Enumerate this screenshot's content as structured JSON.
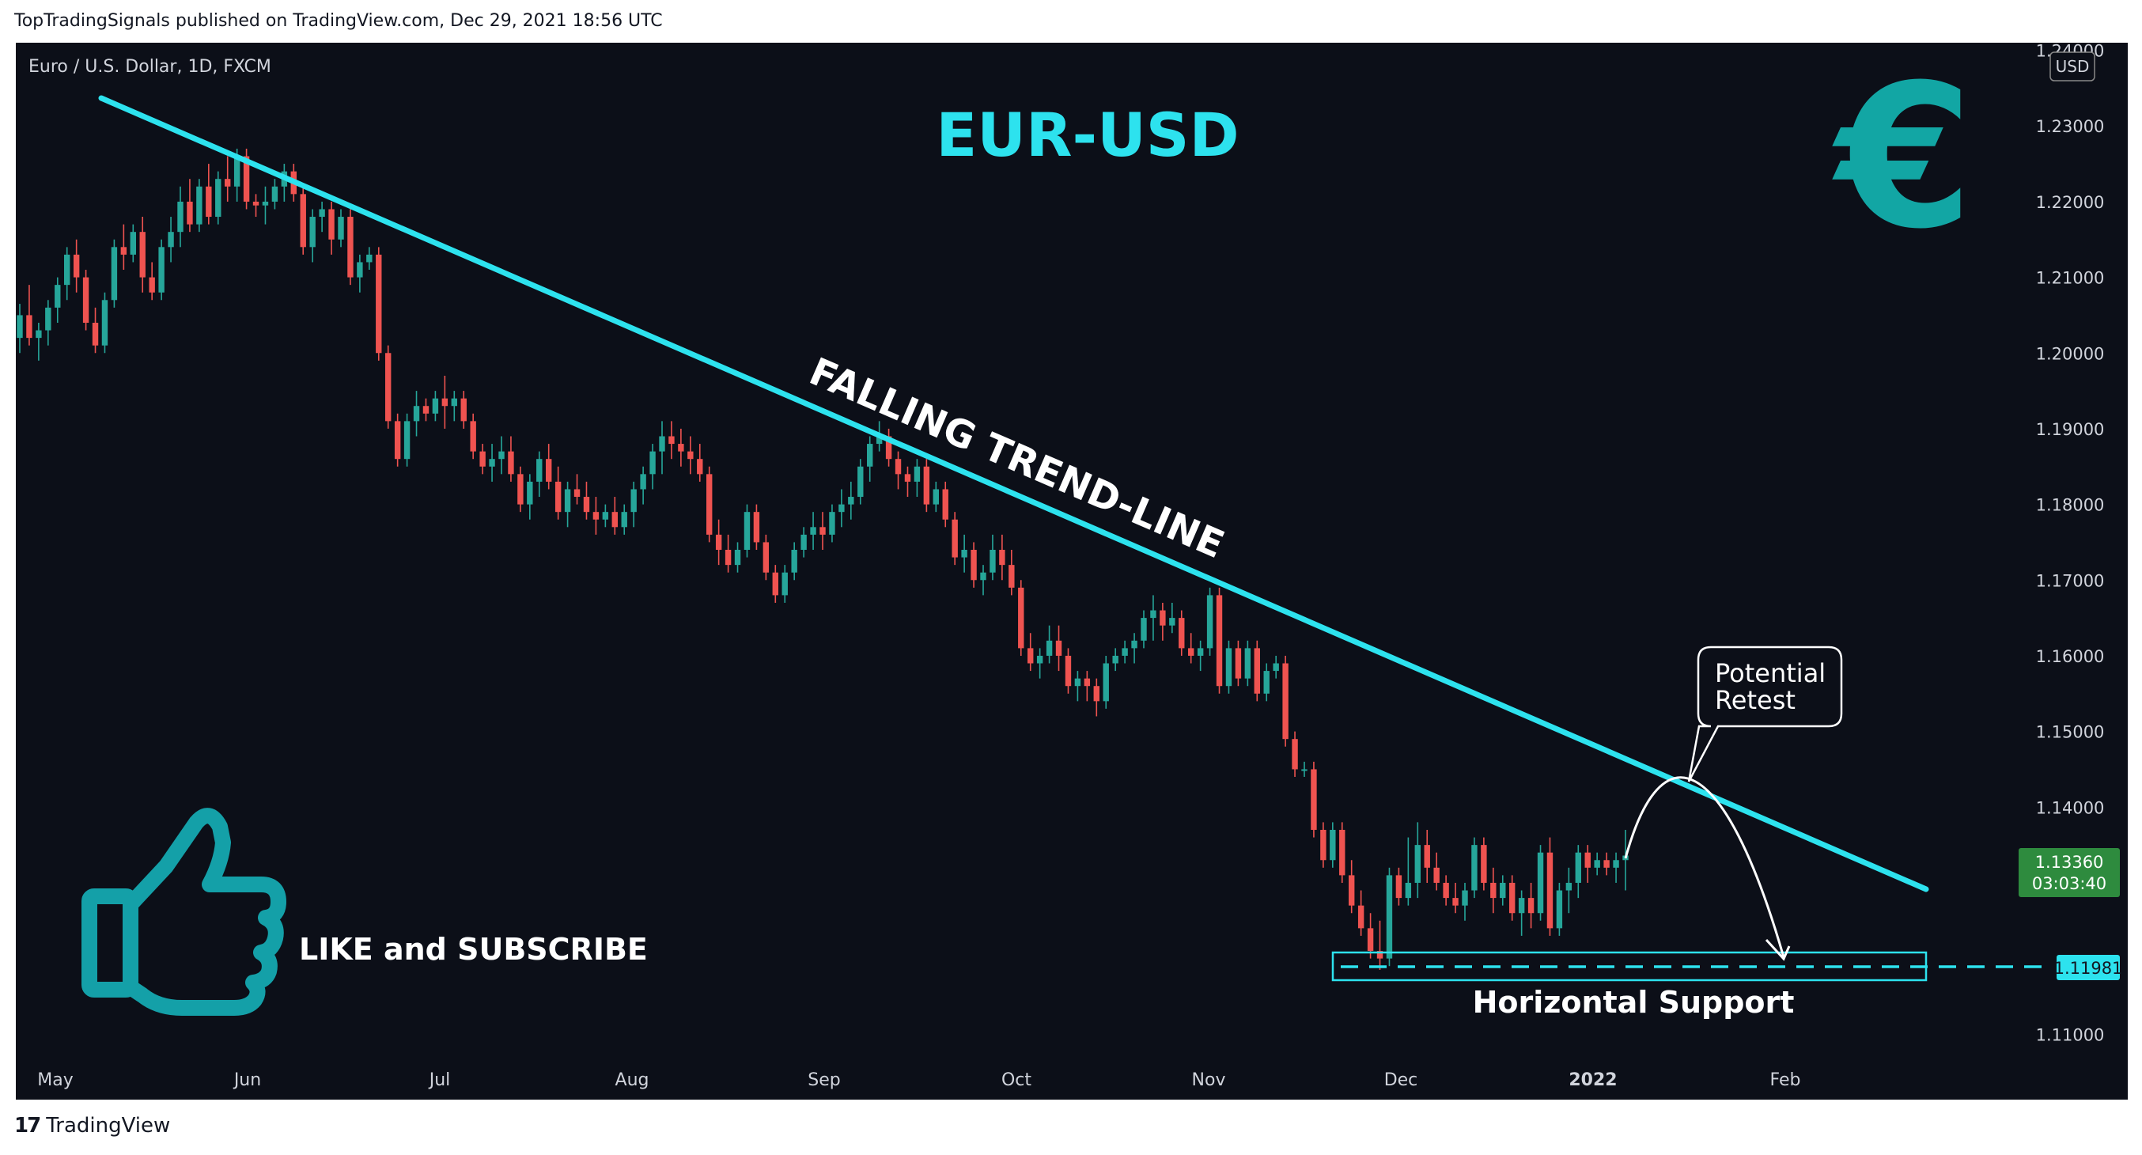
{
  "header": {
    "published": "TopTradingSignals published on TradingView.com, Dec 29, 2021 18:56 UTC"
  },
  "footer": {
    "brand": "TradingView",
    "logo_text": "17"
  },
  "chart_data": {
    "type": "candlestick",
    "symbol_label": "Euro / U.S. Dollar, 1D, FXCM",
    "title": "EUR-USD",
    "currency": "USD",
    "ylim": [
      1.107,
      1.241
    ],
    "y_ticks": [
      "1.24000",
      "1.23000",
      "1.22000",
      "1.21000",
      "1.20000",
      "1.19000",
      "1.18000",
      "1.17000",
      "1.16000",
      "1.15000",
      "1.14000",
      "1.11000"
    ],
    "x_ticks": [
      "May",
      "Jun",
      "Jul",
      "Aug",
      "Sep",
      "Oct",
      "Nov",
      "Dec",
      "2022",
      "Feb"
    ],
    "last_price": {
      "value": "1.13360",
      "countdown": "03:03:40"
    },
    "support_price": "1.11981",
    "annotations": {
      "trendline_label": "FALLING TREND-LINE",
      "support_label": "Horizontal Support",
      "callout": [
        "Potential",
        "Retest"
      ],
      "promo": "LIKE and SUBSCRIBE",
      "euro_symbol": "€"
    },
    "colors": {
      "up": "#26a69a",
      "down": "#ef5350",
      "trendline": "#2de2ee",
      "background": "#0c0f18",
      "last_price": "#2e8b3e",
      "accent": "#00bcd4"
    },
    "ohlc": [
      [
        1.202,
        1.2065,
        1.2,
        1.205
      ],
      [
        1.205,
        1.209,
        1.201,
        1.202
      ],
      [
        1.202,
        1.204,
        1.199,
        1.203
      ],
      [
        1.203,
        1.207,
        1.201,
        1.206
      ],
      [
        1.206,
        1.21,
        1.204,
        1.209
      ],
      [
        1.209,
        1.214,
        1.207,
        1.213
      ],
      [
        1.213,
        1.215,
        1.208,
        1.21
      ],
      [
        1.21,
        1.211,
        1.203,
        1.204
      ],
      [
        1.204,
        1.206,
        1.2,
        1.201
      ],
      [
        1.201,
        1.208,
        1.2,
        1.207
      ],
      [
        1.207,
        1.215,
        1.206,
        1.214
      ],
      [
        1.214,
        1.217,
        1.211,
        1.213
      ],
      [
        1.213,
        1.217,
        1.212,
        1.216
      ],
      [
        1.216,
        1.218,
        1.208,
        1.21
      ],
      [
        1.21,
        1.212,
        1.207,
        1.208
      ],
      [
        1.208,
        1.215,
        1.207,
        1.214
      ],
      [
        1.214,
        1.218,
        1.212,
        1.216
      ],
      [
        1.216,
        1.222,
        1.214,
        1.22
      ],
      [
        1.22,
        1.223,
        1.216,
        1.217
      ],
      [
        1.217,
        1.223,
        1.216,
        1.222
      ],
      [
        1.222,
        1.225,
        1.217,
        1.218
      ],
      [
        1.218,
        1.224,
        1.217,
        1.223
      ],
      [
        1.223,
        1.226,
        1.22,
        1.222
      ],
      [
        1.222,
        1.227,
        1.22,
        1.226
      ],
      [
        1.226,
        1.227,
        1.219,
        1.22
      ],
      [
        1.22,
        1.221,
        1.218,
        1.2195
      ],
      [
        1.2195,
        1.222,
        1.217,
        1.22
      ],
      [
        1.22,
        1.223,
        1.219,
        1.222
      ],
      [
        1.222,
        1.225,
        1.22,
        1.224
      ],
      [
        1.224,
        1.225,
        1.22,
        1.221
      ],
      [
        1.221,
        1.222,
        1.213,
        1.214
      ],
      [
        1.214,
        1.219,
        1.212,
        1.218
      ],
      [
        1.218,
        1.22,
        1.216,
        1.219
      ],
      [
        1.219,
        1.22,
        1.213,
        1.215
      ],
      [
        1.215,
        1.219,
        1.214,
        1.218
      ],
      [
        1.218,
        1.219,
        1.209,
        1.21
      ],
      [
        1.21,
        1.213,
        1.208,
        1.212
      ],
      [
        1.212,
        1.214,
        1.211,
        1.213
      ],
      [
        1.213,
        1.214,
        1.199,
        1.2
      ],
      [
        1.2,
        1.201,
        1.19,
        1.191
      ],
      [
        1.191,
        1.192,
        1.185,
        1.186
      ],
      [
        1.186,
        1.192,
        1.185,
        1.191
      ],
      [
        1.191,
        1.195,
        1.189,
        1.193
      ],
      [
        1.193,
        1.194,
        1.191,
        1.192
      ],
      [
        1.192,
        1.195,
        1.191,
        1.194
      ],
      [
        1.194,
        1.197,
        1.19,
        1.193
      ],
      [
        1.193,
        1.195,
        1.191,
        1.194
      ],
      [
        1.194,
        1.195,
        1.19,
        1.191
      ],
      [
        1.191,
        1.192,
        1.186,
        1.187
      ],
      [
        1.187,
        1.188,
        1.184,
        1.185
      ],
      [
        1.185,
        1.188,
        1.183,
        1.186
      ],
      [
        1.186,
        1.189,
        1.184,
        1.187
      ],
      [
        1.187,
        1.189,
        1.183,
        1.184
      ],
      [
        1.184,
        1.185,
        1.179,
        1.18
      ],
      [
        1.18,
        1.184,
        1.178,
        1.183
      ],
      [
        1.183,
        1.187,
        1.181,
        1.186
      ],
      [
        1.186,
        1.188,
        1.182,
        1.183
      ],
      [
        1.183,
        1.185,
        1.178,
        1.179
      ],
      [
        1.179,
        1.183,
        1.177,
        1.182
      ],
      [
        1.182,
        1.184,
        1.18,
        1.181
      ],
      [
        1.181,
        1.183,
        1.178,
        1.179
      ],
      [
        1.179,
        1.181,
        1.176,
        1.178
      ],
      [
        1.178,
        1.18,
        1.177,
        1.179
      ],
      [
        1.179,
        1.181,
        1.176,
        1.177
      ],
      [
        1.177,
        1.18,
        1.176,
        1.179
      ],
      [
        1.179,
        1.183,
        1.177,
        1.182
      ],
      [
        1.182,
        1.185,
        1.18,
        1.184
      ],
      [
        1.184,
        1.188,
        1.182,
        1.187
      ],
      [
        1.187,
        1.191,
        1.184,
        1.189
      ],
      [
        1.189,
        1.191,
        1.186,
        1.188
      ],
      [
        1.188,
        1.19,
        1.185,
        1.187
      ],
      [
        1.187,
        1.189,
        1.184,
        1.186
      ],
      [
        1.186,
        1.188,
        1.183,
        1.184
      ],
      [
        1.184,
        1.185,
        1.175,
        1.176
      ],
      [
        1.176,
        1.178,
        1.172,
        1.174
      ],
      [
        1.174,
        1.176,
        1.171,
        1.172
      ],
      [
        1.172,
        1.175,
        1.171,
        1.174
      ],
      [
        1.174,
        1.18,
        1.173,
        1.179
      ],
      [
        1.179,
        1.18,
        1.174,
        1.175
      ],
      [
        1.175,
        1.176,
        1.17,
        1.171
      ],
      [
        1.171,
        1.172,
        1.167,
        1.168
      ],
      [
        1.168,
        1.172,
        1.167,
        1.171
      ],
      [
        1.171,
        1.175,
        1.17,
        1.174
      ],
      [
        1.174,
        1.177,
        1.173,
        1.176
      ],
      [
        1.176,
        1.179,
        1.174,
        1.177
      ],
      [
        1.177,
        1.179,
        1.174,
        1.176
      ],
      [
        1.176,
        1.18,
        1.175,
        1.179
      ],
      [
        1.179,
        1.182,
        1.177,
        1.18
      ],
      [
        1.18,
        1.183,
        1.178,
        1.181
      ],
      [
        1.181,
        1.186,
        1.18,
        1.185
      ],
      [
        1.185,
        1.189,
        1.183,
        1.188
      ],
      [
        1.188,
        1.191,
        1.187,
        1.189
      ],
      [
        1.189,
        1.19,
        1.185,
        1.186
      ],
      [
        1.186,
        1.187,
        1.182,
        1.184
      ],
      [
        1.184,
        1.185,
        1.181,
        1.183
      ],
      [
        1.183,
        1.186,
        1.181,
        1.185
      ],
      [
        1.185,
        1.186,
        1.179,
        1.18
      ],
      [
        1.18,
        1.183,
        1.179,
        1.182
      ],
      [
        1.182,
        1.183,
        1.177,
        1.178
      ],
      [
        1.178,
        1.179,
        1.172,
        1.173
      ],
      [
        1.173,
        1.176,
        1.171,
        1.174
      ],
      [
        1.174,
        1.175,
        1.169,
        1.17
      ],
      [
        1.17,
        1.172,
        1.168,
        1.171
      ],
      [
        1.171,
        1.176,
        1.17,
        1.174
      ],
      [
        1.174,
        1.176,
        1.17,
        1.172
      ],
      [
        1.172,
        1.174,
        1.168,
        1.169
      ],
      [
        1.169,
        1.17,
        1.16,
        1.161
      ],
      [
        1.161,
        1.163,
        1.158,
        1.159
      ],
      [
        1.159,
        1.161,
        1.157,
        1.16
      ],
      [
        1.16,
        1.164,
        1.159,
        1.162
      ],
      [
        1.162,
        1.164,
        1.158,
        1.16
      ],
      [
        1.16,
        1.161,
        1.155,
        1.156
      ],
      [
        1.156,
        1.158,
        1.154,
        1.157
      ],
      [
        1.157,
        1.158,
        1.154,
        1.156
      ],
      [
        1.156,
        1.157,
        1.152,
        1.154
      ],
      [
        1.154,
        1.16,
        1.153,
        1.159
      ],
      [
        1.159,
        1.161,
        1.158,
        1.16
      ],
      [
        1.16,
        1.162,
        1.159,
        1.161
      ],
      [
        1.161,
        1.163,
        1.159,
        1.162
      ],
      [
        1.162,
        1.166,
        1.161,
        1.165
      ],
      [
        1.165,
        1.168,
        1.162,
        1.166
      ],
      [
        1.166,
        1.167,
        1.162,
        1.164
      ],
      [
        1.164,
        1.167,
        1.163,
        1.165
      ],
      [
        1.165,
        1.166,
        1.16,
        1.161
      ],
      [
        1.161,
        1.163,
        1.159,
        1.16
      ],
      [
        1.16,
        1.162,
        1.158,
        1.161
      ],
      [
        1.161,
        1.169,
        1.16,
        1.168
      ],
      [
        1.168,
        1.169,
        1.155,
        1.156
      ],
      [
        1.156,
        1.162,
        1.155,
        1.161
      ],
      [
        1.161,
        1.162,
        1.156,
        1.157
      ],
      [
        1.157,
        1.162,
        1.156,
        1.161
      ],
      [
        1.161,
        1.162,
        1.154,
        1.155
      ],
      [
        1.155,
        1.159,
        1.154,
        1.158
      ],
      [
        1.158,
        1.16,
        1.157,
        1.159
      ],
      [
        1.159,
        1.16,
        1.148,
        1.149
      ],
      [
        1.149,
        1.15,
        1.144,
        1.145
      ],
      [
        1.145,
        1.146,
        1.144,
        1.145
      ],
      [
        1.145,
        1.146,
        1.136,
        1.137
      ],
      [
        1.137,
        1.138,
        1.132,
        1.133
      ],
      [
        1.133,
        1.138,
        1.132,
        1.137
      ],
      [
        1.137,
        1.138,
        1.13,
        1.131
      ],
      [
        1.131,
        1.133,
        1.126,
        1.127
      ],
      [
        1.127,
        1.129,
        1.123,
        1.124
      ],
      [
        1.124,
        1.126,
        1.12,
        1.121
      ],
      [
        1.121,
        1.125,
        1.1185,
        1.12
      ],
      [
        1.12,
        1.132,
        1.119,
        1.131
      ],
      [
        1.131,
        1.132,
        1.127,
        1.128
      ],
      [
        1.128,
        1.136,
        1.127,
        1.13
      ],
      [
        1.13,
        1.138,
        1.128,
        1.135
      ],
      [
        1.135,
        1.137,
        1.13,
        1.132
      ],
      [
        1.132,
        1.134,
        1.129,
        1.13
      ],
      [
        1.13,
        1.131,
        1.127,
        1.128
      ],
      [
        1.128,
        1.13,
        1.126,
        1.127
      ],
      [
        1.127,
        1.13,
        1.125,
        1.129
      ],
      [
        1.129,
        1.136,
        1.128,
        1.135
      ],
      [
        1.135,
        1.136,
        1.129,
        1.13
      ],
      [
        1.13,
        1.132,
        1.126,
        1.128
      ],
      [
        1.128,
        1.131,
        1.127,
        1.13
      ],
      [
        1.13,
        1.131,
        1.125,
        1.126
      ],
      [
        1.126,
        1.129,
        1.123,
        1.128
      ],
      [
        1.128,
        1.13,
        1.124,
        1.126
      ],
      [
        1.126,
        1.135,
        1.125,
        1.134
      ],
      [
        1.134,
        1.136,
        1.123,
        1.124
      ],
      [
        1.124,
        1.13,
        1.123,
        1.129
      ],
      [
        1.129,
        1.132,
        1.126,
        1.13
      ],
      [
        1.13,
        1.135,
        1.128,
        1.134
      ],
      [
        1.134,
        1.135,
        1.13,
        1.132
      ],
      [
        1.132,
        1.134,
        1.131,
        1.133
      ],
      [
        1.133,
        1.134,
        1.131,
        1.132
      ],
      [
        1.132,
        1.134,
        1.13,
        1.133
      ],
      [
        1.133,
        1.137,
        1.129,
        1.1336
      ]
    ]
  }
}
